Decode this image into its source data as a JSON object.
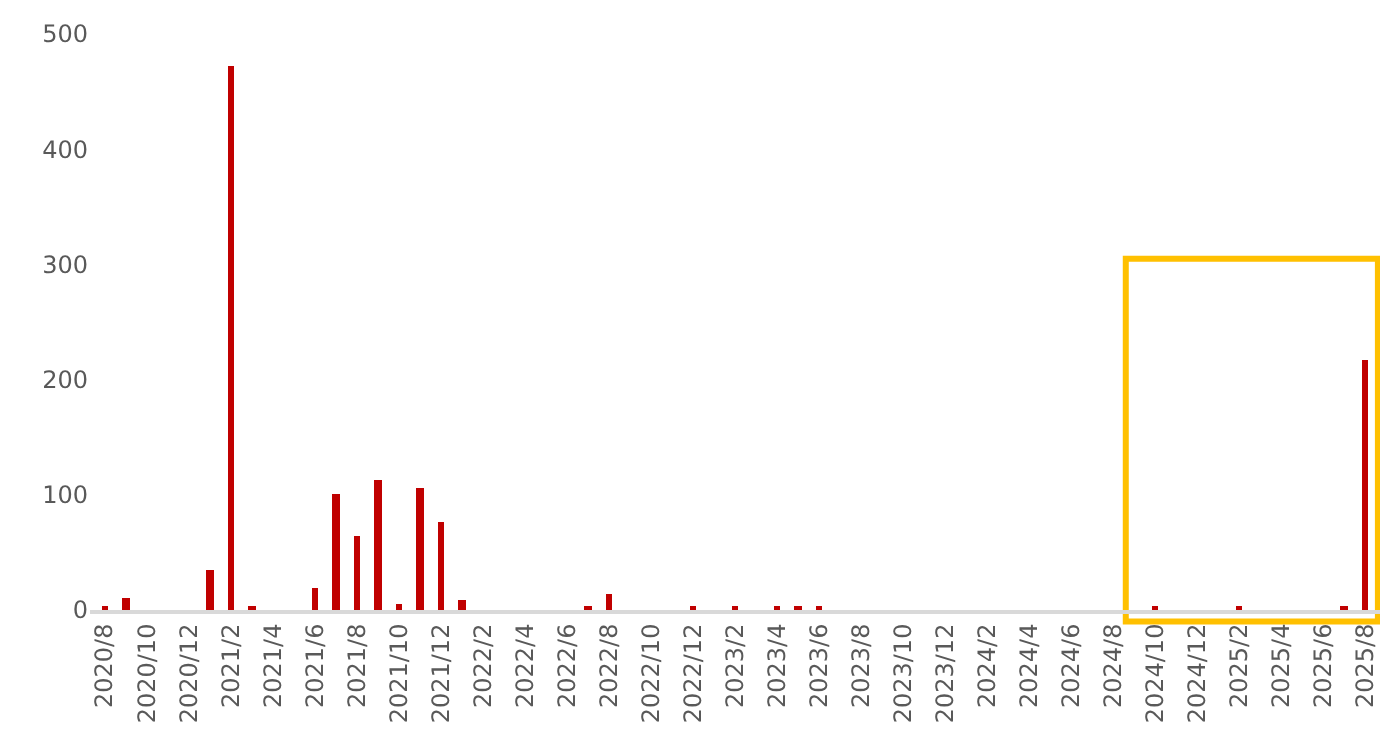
{
  "chart_data": {
    "type": "bar",
    "categories": [
      "2020/8",
      null,
      "2020/10",
      null,
      "2020/12",
      null,
      "2021/2",
      null,
      "2021/4",
      null,
      "2021/6",
      null,
      "2021/8",
      null,
      "2021/10",
      null,
      "2021/12",
      null,
      "2022/2",
      null,
      "2022/4",
      null,
      "2022/6",
      null,
      "2022/8",
      null,
      "2022/10",
      null,
      "2022/12",
      null,
      "2023/2",
      null,
      "2023/4",
      null,
      "2023/6",
      null,
      "2023/8",
      null,
      "2023/10",
      null,
      "2023/12",
      null,
      "2024/2",
      null,
      "2024/4",
      null,
      "2024/6",
      null,
      "2024/8",
      null,
      "2024/10",
      null,
      "2024/12",
      null,
      "2025/2",
      null,
      "2025/4",
      null,
      "2025/6",
      null,
      "2025/8"
    ],
    "values": [
      3,
      10,
      0,
      0,
      0,
      35,
      472,
      2,
      0,
      0,
      19,
      100,
      65,
      112,
      6,
      106,
      76,
      8,
      0,
      0,
      0,
      0,
      0,
      3,
      14,
      0,
      0,
      0,
      2,
      0,
      2,
      0,
      3,
      2,
      2,
      0,
      0,
      0,
      0,
      0,
      0,
      0,
      0,
      0,
      0,
      0,
      0,
      0,
      0,
      0,
      2,
      0,
      0,
      0,
      3,
      0,
      0,
      0,
      0,
      2,
      217
    ],
    "color": "#c00000",
    "ylim": [
      0,
      500
    ],
    "yticks": [
      0,
      100,
      200,
      300,
      400,
      500
    ]
  }
}
